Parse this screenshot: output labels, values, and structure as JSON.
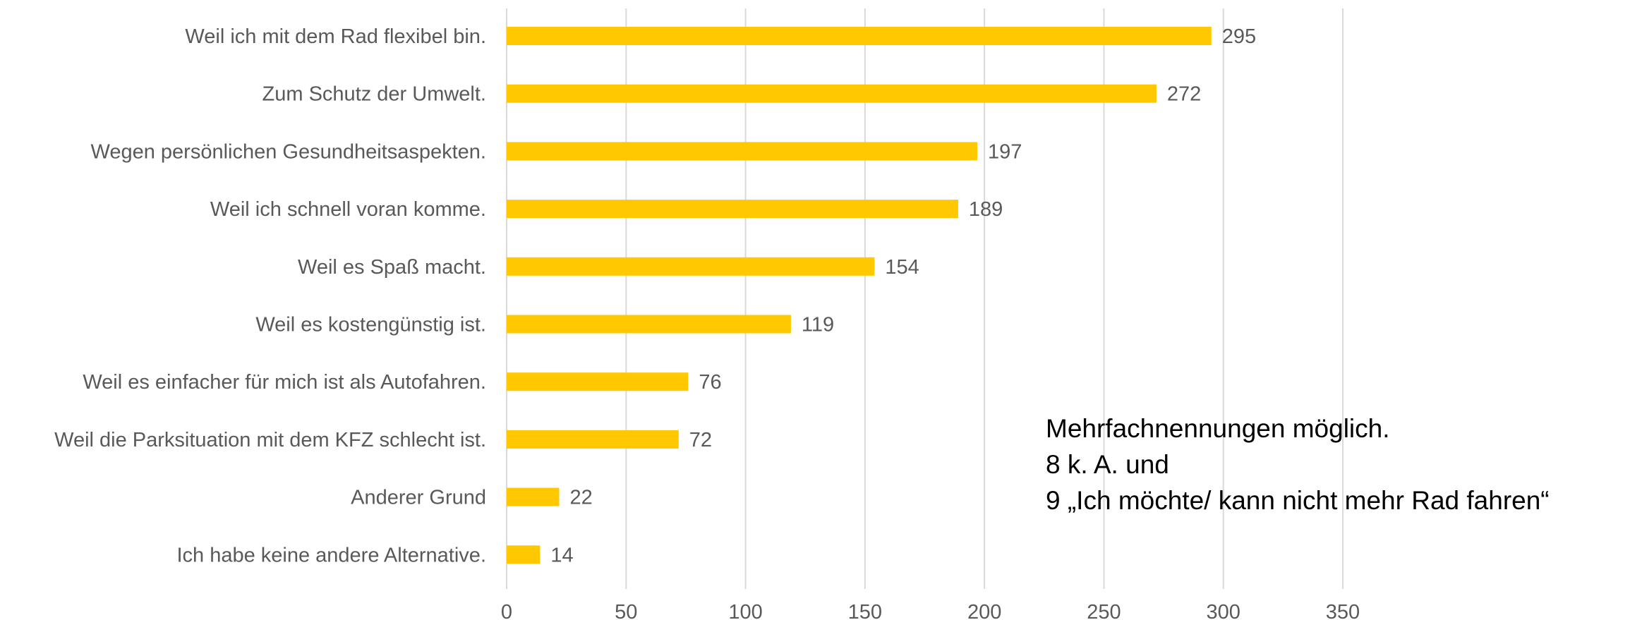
{
  "chart_data": {
    "type": "bar",
    "orientation": "horizontal",
    "categories": [
      "Weil ich mit dem Rad flexibel bin.",
      "Zum Schutz der Umwelt.",
      "Wegen persönlichen Gesundheitsaspekten.",
      "Weil ich schnell voran komme.",
      "Weil es Spaß macht.",
      "Weil es kostengünstig ist.",
      "Weil es einfacher für mich ist als Autofahren.",
      "Weil die Parksituation mit dem KFZ schlecht ist.",
      "Anderer Grund",
      "Ich habe keine andere Alternative."
    ],
    "values": [
      295,
      272,
      197,
      189,
      154,
      119,
      76,
      72,
      22,
      14
    ],
    "xlim": [
      0,
      350
    ],
    "xticks": [
      "0",
      "50",
      "100",
      "150",
      "200",
      "250",
      "300",
      "350"
    ],
    "bar_color": "#ffc800",
    "grid": true,
    "data_labels": true
  },
  "note": {
    "lines": [
      "Mehrfachnennungen möglich.",
      "8 k. A. und",
      "9 „Ich möchte/ kann nicht mehr Rad fahren“"
    ]
  }
}
